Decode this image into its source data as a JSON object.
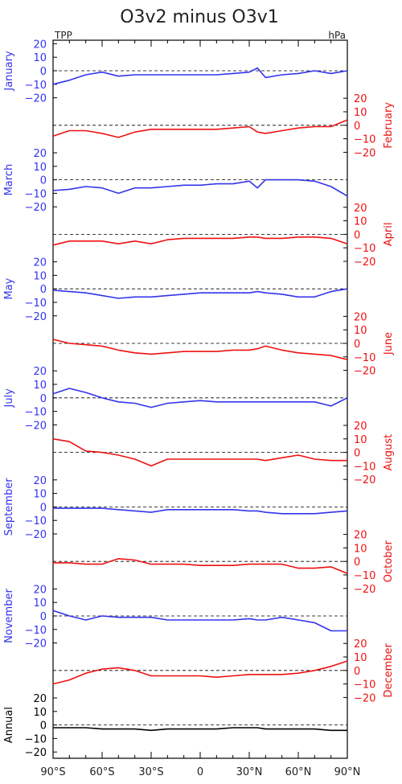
{
  "chart_data": {
    "type": "line",
    "title": "O3v2 minus O3v1",
    "corner_left": "TPP",
    "corner_right": "hPa",
    "x": [
      -90,
      -80,
      -70,
      -60,
      -50,
      -40,
      -30,
      -20,
      -10,
      0,
      10,
      20,
      30,
      35,
      40,
      50,
      60,
      70,
      80,
      90
    ],
    "xlim": [
      -90,
      90
    ],
    "x_ticks": [
      -90,
      -60,
      -30,
      0,
      30,
      60,
      90
    ],
    "x_tick_labels": [
      "90°S",
      "60°S",
      "30°S",
      "0",
      "30°N",
      "60°N",
      "90°N"
    ],
    "y_ticks": [
      20,
      10,
      0,
      -10,
      -20
    ],
    "y_tick_labels": [
      "20",
      "10",
      "0",
      "−10",
      "−20"
    ],
    "ylim": [
      -30,
      30
    ],
    "colors": {
      "blue": "#3333ee",
      "red": "#ee1111",
      "black": "#000000"
    },
    "series": [
      {
        "name": "January",
        "side": "left",
        "color": "blue",
        "values": [
          -10,
          -7,
          -3,
          -1,
          -4,
          -3,
          -3,
          -3,
          -3,
          -3,
          -3,
          -2,
          -1,
          2,
          -5,
          -3,
          -2,
          0,
          -2,
          0
        ]
      },
      {
        "name": "February",
        "side": "right",
        "color": "red",
        "values": [
          -8,
          -4,
          -4,
          -6,
          -9,
          -5,
          -3,
          -3,
          -3,
          -3,
          -3,
          -2,
          -1,
          -5,
          -6,
          -4,
          -2,
          -1,
          -1,
          4
        ]
      },
      {
        "name": "March",
        "side": "left",
        "color": "blue",
        "values": [
          -8,
          -7,
          -5,
          -6,
          -10,
          -6,
          -6,
          -5,
          -4,
          -4,
          -3,
          -3,
          -1,
          -6,
          0,
          0,
          0,
          -1,
          -5,
          -12
        ]
      },
      {
        "name": "April",
        "side": "right",
        "color": "red",
        "values": [
          -8,
          -5,
          -5,
          -5,
          -7,
          -5,
          -7,
          -4,
          -3,
          -3,
          -3,
          -3,
          -2,
          -2,
          -3,
          -3,
          -2,
          -2,
          -3,
          -7
        ]
      },
      {
        "name": "May",
        "side": "left",
        "color": "blue",
        "values": [
          -1,
          -2,
          -3,
          -5,
          -7,
          -6,
          -6,
          -5,
          -4,
          -3,
          -3,
          -3,
          -3,
          -2,
          -3,
          -4,
          -6,
          -6,
          -2,
          0
        ]
      },
      {
        "name": "June",
        "side": "right",
        "color": "red",
        "values": [
          3,
          0,
          -1,
          -2,
          -5,
          -7,
          -8,
          -7,
          -6,
          -6,
          -6,
          -5,
          -5,
          -4,
          -2,
          -5,
          -7,
          -8,
          -9,
          -12
        ]
      },
      {
        "name": "July",
        "side": "left",
        "color": "blue",
        "values": [
          3,
          7,
          4,
          0,
          -3,
          -4,
          -7,
          -4,
          -3,
          -2,
          -3,
          -3,
          -3,
          -3,
          -3,
          -3,
          -3,
          -3,
          -6,
          0
        ]
      },
      {
        "name": "August",
        "side": "right",
        "color": "red",
        "values": [
          10,
          8,
          1,
          0,
          -2,
          -5,
          -10,
          -5,
          -5,
          -5,
          -5,
          -5,
          -5,
          -5,
          -6,
          -4,
          -2,
          -5,
          -6,
          -6
        ]
      },
      {
        "name": "September",
        "side": "left",
        "color": "blue",
        "values": [
          -1,
          -1,
          -1,
          -1,
          -2,
          -3,
          -4,
          -2,
          -2,
          -2,
          -2,
          -2,
          -3,
          -3,
          -4,
          -5,
          -5,
          -5,
          -4,
          -3
        ]
      },
      {
        "name": "October",
        "side": "right",
        "color": "red",
        "values": [
          -1,
          -1,
          -2,
          -2,
          2,
          1,
          -2,
          -2,
          -2,
          -3,
          -3,
          -3,
          -2,
          -2,
          -2,
          -2,
          -5,
          -5,
          -4,
          -9
        ]
      },
      {
        "name": "November",
        "side": "left",
        "color": "blue",
        "values": [
          4,
          0,
          -3,
          0,
          -1,
          -1,
          -1,
          -3,
          -3,
          -3,
          -3,
          -3,
          -2,
          -3,
          -3,
          -1,
          -3,
          -5,
          -11,
          -11
        ]
      },
      {
        "name": "December",
        "side": "right",
        "color": "red",
        "values": [
          -10,
          -7,
          -2,
          1,
          2,
          0,
          -4,
          -4,
          -4,
          -4,
          -5,
          -4,
          -3,
          -3,
          -3,
          -3,
          -2,
          0,
          3,
          7
        ]
      },
      {
        "name": "Annual",
        "side": "left",
        "color": "black",
        "values": [
          -2,
          -2,
          -2,
          -3,
          -3,
          -3,
          -4,
          -3,
          -3,
          -3,
          -3,
          -2,
          -2,
          -2,
          -3,
          -3,
          -3,
          -3,
          -4,
          -4
        ]
      }
    ]
  }
}
